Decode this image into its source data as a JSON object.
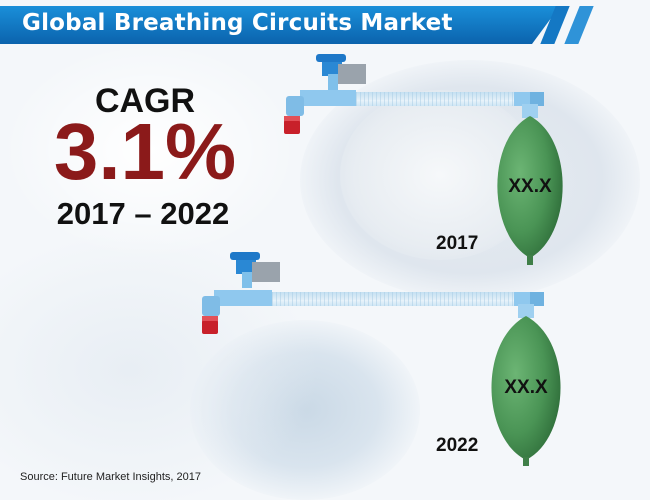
{
  "header": {
    "title": "Global Breathing Circuits Market"
  },
  "cagr": {
    "label": "CAGR",
    "value": "3.1%",
    "period": "2017 – 2022"
  },
  "circuits": [
    {
      "year": "2017",
      "bag_value": "XX.X"
    },
    {
      "year": "2022",
      "bag_value": "XX.X"
    }
  ],
  "source": "Source: Future Market Insights, 2017",
  "colors": {
    "header_blue": "#0b63ad",
    "cagr_red": "#8b1a1a",
    "bag_green": "#4f9a5a",
    "valve_blue": "#1e78c8",
    "cap_red": "#c8202a"
  }
}
